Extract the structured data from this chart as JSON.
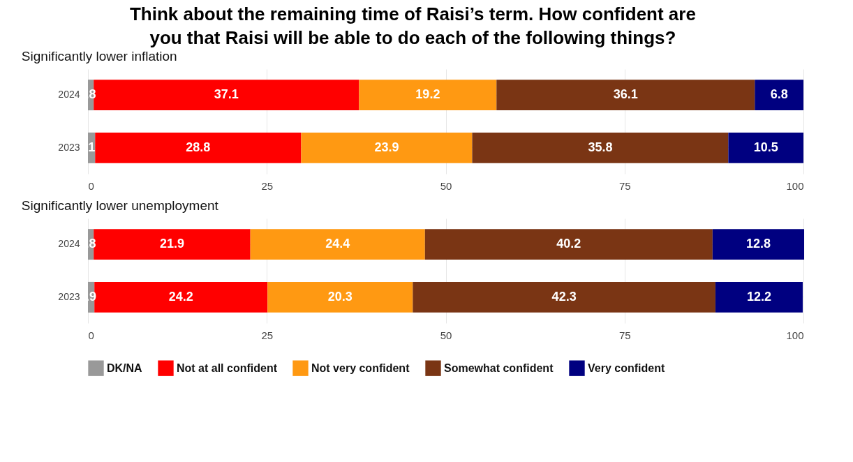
{
  "chart_data": [
    {
      "type": "bar",
      "title": "Think about the remaining time of Raisi’s term. How confident are you that Raisi will be able to do each of the following things?",
      "subtitle": "Significantly lower inflation",
      "orientation": "horizontal",
      "stacked": true,
      "categories": [
        "2024",
        "2023"
      ],
      "xlim": [
        0,
        100
      ],
      "xticks": [
        0,
        25,
        50,
        75,
        100
      ],
      "grid": true,
      "legend": "bottom",
      "series": [
        {
          "name": "DK/NA",
          "color": "#999999",
          "values": [
            0.8,
            1
          ],
          "value_labels": [
            ".8",
            "1"
          ]
        },
        {
          "name": "Not at all confident",
          "color": "#ff0000",
          "values": [
            37.1,
            28.8
          ],
          "value_labels": [
            "37.1",
            "28.8"
          ]
        },
        {
          "name": "Not very confident",
          "color": "#ff9912",
          "values": [
            19.2,
            23.9
          ],
          "value_labels": [
            "19.2",
            "23.9"
          ]
        },
        {
          "name": "Somewhat confident",
          "color": "#7a3514",
          "values": [
            36.1,
            35.8
          ],
          "value_labels": [
            "36.1",
            "35.8"
          ]
        },
        {
          "name": "Very confident",
          "color": "#000080",
          "values": [
            6.8,
            10.5
          ],
          "value_labels": [
            "6.8",
            "10.5"
          ]
        }
      ]
    },
    {
      "type": "bar",
      "subtitle": "Significantly lower unemployment",
      "orientation": "horizontal",
      "stacked": true,
      "categories": [
        "2024",
        "2023"
      ],
      "xlim": [
        0,
        100
      ],
      "xticks": [
        0,
        25,
        50,
        75,
        100
      ],
      "grid": true,
      "legend": "bottom",
      "series": [
        {
          "name": "DK/NA",
          "color": "#999999",
          "values": [
            0.8,
            0.9
          ],
          "value_labels": [
            ".8",
            ".9"
          ]
        },
        {
          "name": "Not at all confident",
          "color": "#ff0000",
          "values": [
            21.9,
            24.2
          ],
          "value_labels": [
            "21.9",
            "24.2"
          ]
        },
        {
          "name": "Not very confident",
          "color": "#ff9912",
          "values": [
            24.4,
            20.3
          ],
          "value_labels": [
            "24.4",
            "20.3"
          ]
        },
        {
          "name": "Somewhat confident",
          "color": "#7a3514",
          "values": [
            40.2,
            42.3
          ],
          "value_labels": [
            "40.2",
            "42.3"
          ]
        },
        {
          "name": "Very confident",
          "color": "#000080",
          "values": [
            12.8,
            12.2
          ],
          "value_labels": [
            "12.8",
            "12.2"
          ]
        }
      ]
    }
  ]
}
